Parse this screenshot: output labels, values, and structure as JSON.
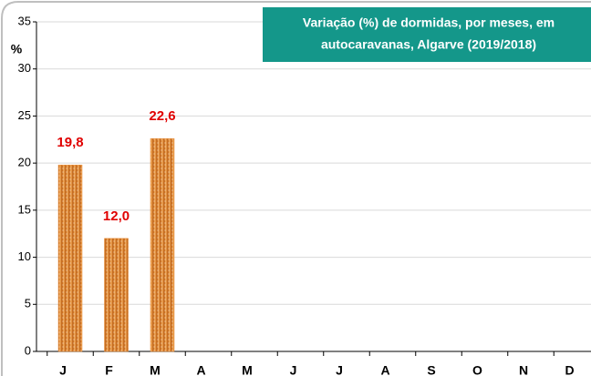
{
  "chart_data": {
    "type": "bar",
    "title": [
      "Variação (%) de dormidas, por meses, em",
      "autocaravanas, Algarve (2019/2018)"
    ],
    "y_label": "%",
    "categories": [
      "J",
      "F",
      "M",
      "A",
      "M",
      "J",
      "J",
      "A",
      "S",
      "O",
      "N",
      "D"
    ],
    "values": [
      19.8,
      12.0,
      22.6,
      null,
      null,
      null,
      null,
      null,
      null,
      null,
      null,
      null
    ],
    "value_labels": [
      "19,8",
      "12,0",
      "22,6",
      null,
      null,
      null,
      null,
      null,
      null,
      null,
      null,
      null
    ],
    "color": "#e8862a",
    "ylim": [
      0,
      35
    ],
    "yticks": [
      0,
      5,
      10,
      15,
      20,
      25,
      30,
      35
    ],
    "grid": true
  }
}
